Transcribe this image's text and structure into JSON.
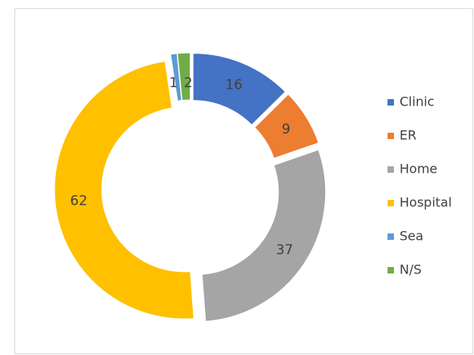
{
  "chart_data": {
    "type": "pie",
    "donut": true,
    "categories": [
      "Clinic",
      "ER",
      "Home",
      "Hospital",
      "Sea",
      "N/S"
    ],
    "values": [
      16,
      9,
      37,
      62,
      1,
      2
    ],
    "colors": [
      "#4472c4",
      "#ed7d31",
      "#a5a5a5",
      "#ffc000",
      "#5b9bd5",
      "#70ad47"
    ],
    "legend": "right"
  }
}
